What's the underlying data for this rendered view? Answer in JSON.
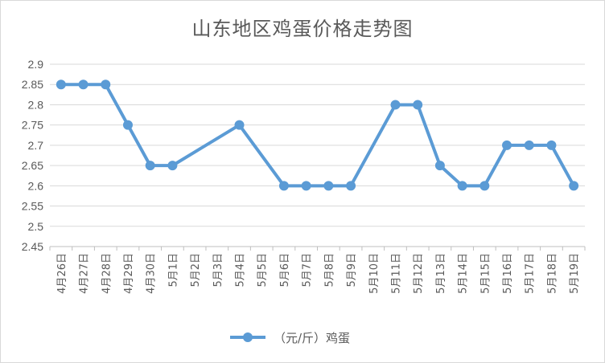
{
  "chart_data": {
    "type": "line",
    "title": "山东地区鸡蛋价格走势图",
    "xlabel": "",
    "ylabel": "",
    "ylim": [
      2.45,
      2.9
    ],
    "yticks": [
      "2.9",
      "2.85",
      "2.8",
      "2.75",
      "2.7",
      "2.65",
      "2.6",
      "2.55",
      "2.5",
      "2.45"
    ],
    "grid": true,
    "legend_position": "bottom",
    "categories": [
      "4月26日",
      "4月27日",
      "4月28日",
      "4月29日",
      "4月30日",
      "5月1日",
      "5月2日",
      "5月3日",
      "5月4日",
      "5月5日",
      "5月6日",
      "5月7日",
      "5月8日",
      "5月9日",
      "5月10日",
      "5月11日",
      "5月12日",
      "5月13日",
      "5月14日",
      "5月15日",
      "5月16日",
      "5月17日",
      "5月18日",
      "5月19日"
    ],
    "series": [
      {
        "name": "（元/斤）鸡蛋",
        "color": "#5b9bd5",
        "values": [
          2.85,
          2.85,
          2.85,
          2.75,
          2.65,
          2.65,
          null,
          null,
          2.75,
          null,
          2.6,
          2.6,
          2.6,
          2.6,
          null,
          2.8,
          2.8,
          2.65,
          2.6,
          2.6,
          2.7,
          2.7,
          2.7,
          2.6
        ]
      }
    ]
  }
}
